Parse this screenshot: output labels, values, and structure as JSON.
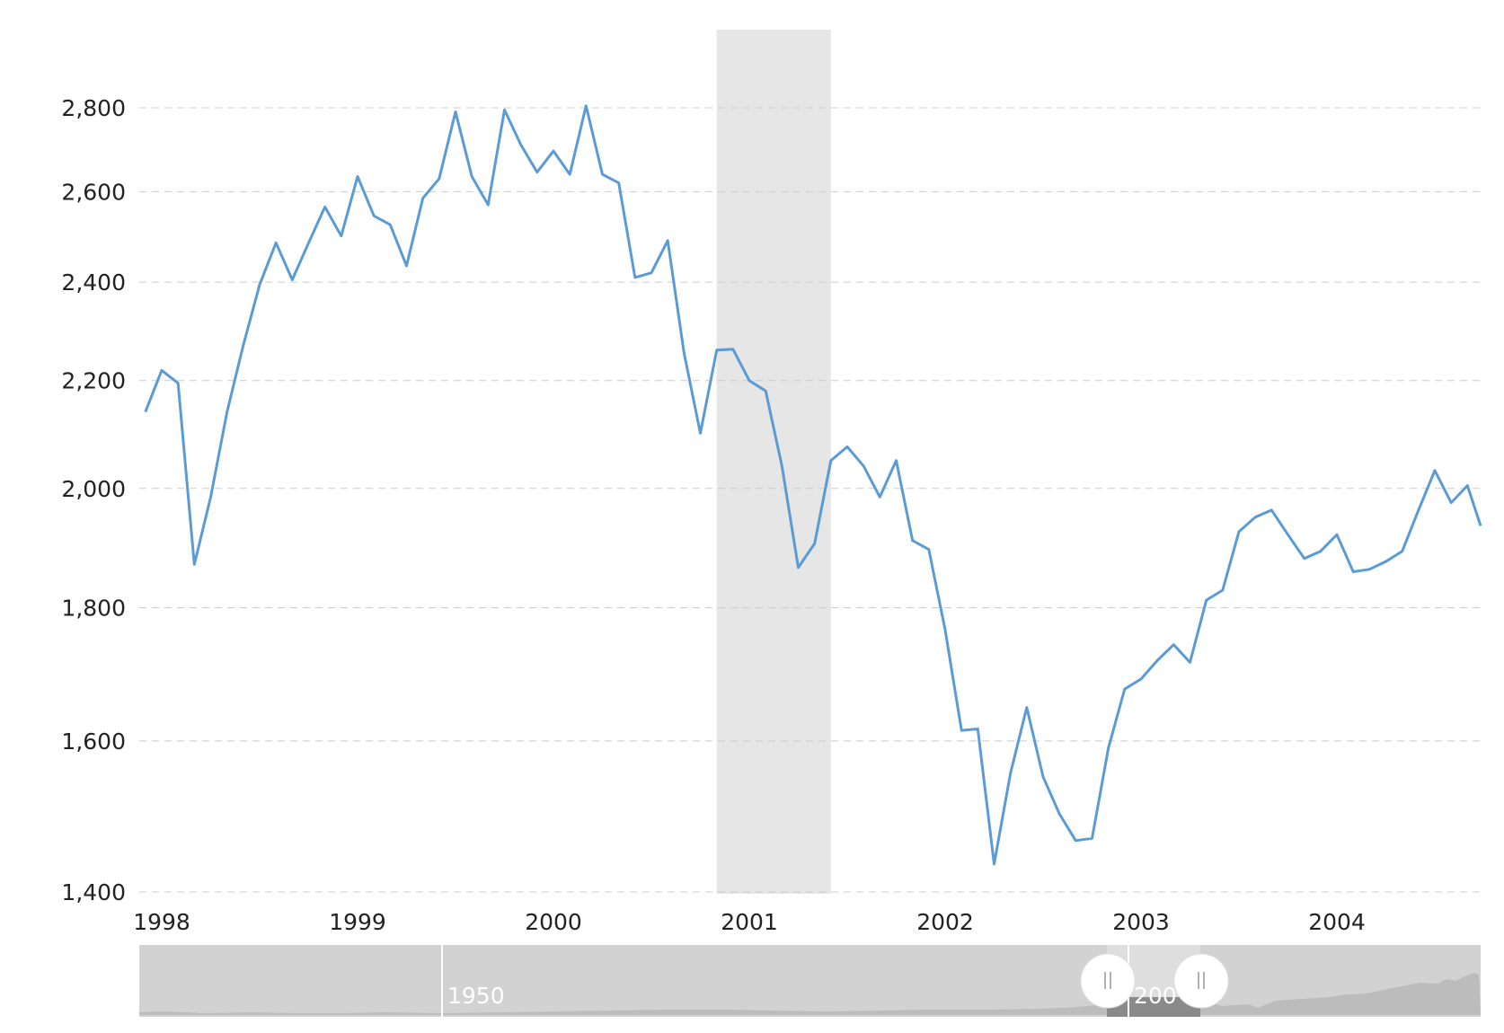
{
  "chart_data": {
    "type": "line",
    "title": "",
    "xlabel": "",
    "ylabel": "",
    "y_scale": "log",
    "ylim": [
      1400,
      2950
    ],
    "grid": true,
    "x_tick_labels": [
      "1998",
      "1999",
      "2000",
      "2001",
      "2002",
      "2003",
      "2004"
    ],
    "y_tick_labels": [
      "1,400",
      "1,600",
      "1,800",
      "2,000",
      "2,200",
      "2,400",
      "2,600",
      "2,800"
    ],
    "y_ticks": [
      1400,
      1600,
      1800,
      2000,
      2200,
      2400,
      2600,
      2800
    ],
    "shaded_period": {
      "start": "2000-11",
      "end": "2001-06"
    },
    "series": [
      {
        "color": "#5b9bd5",
        "points": [
          [
            "1997-12",
            2140
          ],
          [
            "1998-01",
            2220
          ],
          [
            "1998-02",
            2195
          ],
          [
            "1998-03",
            1870
          ],
          [
            "1998-04",
            1985
          ],
          [
            "1998-05",
            2140
          ],
          [
            "1998-06",
            2270
          ],
          [
            "1998-07",
            2395
          ],
          [
            "1998-08",
            2485
          ],
          [
            "1998-09",
            2405
          ],
          [
            "1998-10",
            2485
          ],
          [
            "1998-11",
            2565
          ],
          [
            "1998-12",
            2500
          ],
          [
            "1999-01",
            2635
          ],
          [
            "1999-02",
            2545
          ],
          [
            "1999-03",
            2525
          ],
          [
            "1999-04",
            2435
          ],
          [
            "1999-05",
            2585
          ],
          [
            "1999-06",
            2630
          ],
          [
            "1999-07",
            2790
          ],
          [
            "1999-08",
            2635
          ],
          [
            "1999-09",
            2570
          ],
          [
            "1999-10",
            2795
          ],
          [
            "1999-11",
            2710
          ],
          [
            "1999-12",
            2645
          ],
          [
            "2000-01",
            2695
          ],
          [
            "2000-02",
            2640
          ],
          [
            "2000-03",
            2805
          ],
          [
            "2000-04",
            2640
          ],
          [
            "2000-05",
            2620
          ],
          [
            "2000-06",
            2410
          ],
          [
            "2000-07",
            2420
          ],
          [
            "2000-08",
            2490
          ],
          [
            "2000-09",
            2255
          ],
          [
            "2000-10",
            2100
          ],
          [
            "2000-11",
            2260
          ],
          [
            "2000-12",
            2262
          ],
          [
            "2001-01",
            2200
          ],
          [
            "2001-02",
            2180
          ],
          [
            "2001-03",
            2040
          ],
          [
            "2001-04",
            1865
          ],
          [
            "2001-05",
            1905
          ],
          [
            "2001-06",
            2050
          ],
          [
            "2001-07",
            2075
          ],
          [
            "2001-08",
            2040
          ],
          [
            "2001-09",
            1985
          ],
          [
            "2001-10",
            2050
          ],
          [
            "2001-11",
            1910
          ],
          [
            "2001-12",
            1895
          ],
          [
            "2002-01",
            1765
          ],
          [
            "2002-02",
            1615
          ],
          [
            "2002-03",
            1617
          ],
          [
            "2002-04",
            1435
          ],
          [
            "2002-05",
            1555
          ],
          [
            "2002-06",
            1648
          ],
          [
            "2002-07",
            1550
          ],
          [
            "2002-08",
            1500
          ],
          [
            "2002-09",
            1465
          ],
          [
            "2002-10",
            1468
          ],
          [
            "2002-11",
            1590
          ],
          [
            "2002-12",
            1675
          ],
          [
            "2003-01",
            1690
          ],
          [
            "2003-02",
            1718
          ],
          [
            "2003-03",
            1742
          ],
          [
            "2003-04",
            1715
          ],
          [
            "2003-05",
            1812
          ],
          [
            "2003-06",
            1828
          ],
          [
            "2003-07",
            1925
          ],
          [
            "2003-08",
            1950
          ],
          [
            "2003-09",
            1962
          ],
          [
            "2003-10",
            1920
          ],
          [
            "2003-11",
            1880
          ],
          [
            "2003-12",
            1892
          ],
          [
            "2004-01",
            1920
          ],
          [
            "2004-02",
            1858
          ],
          [
            "2004-03",
            1862
          ],
          [
            "2004-04",
            1875
          ],
          [
            "2004-05",
            1892
          ],
          [
            "2004-06",
            1962
          ],
          [
            "2004-07",
            2032
          ],
          [
            "2004-08",
            1975
          ],
          [
            "2004-09",
            2005
          ],
          [
            "2004-10",
            1935
          ]
        ]
      }
    ]
  },
  "navigator": {
    "label_1950": "1950",
    "label_2000": "200",
    "handle_left_icon": "grip-icon",
    "handle_right_icon": "grip-icon",
    "selected_range": [
      "1997-12",
      "2004-10"
    ],
    "full_range": [
      "1928",
      "2019"
    ]
  }
}
